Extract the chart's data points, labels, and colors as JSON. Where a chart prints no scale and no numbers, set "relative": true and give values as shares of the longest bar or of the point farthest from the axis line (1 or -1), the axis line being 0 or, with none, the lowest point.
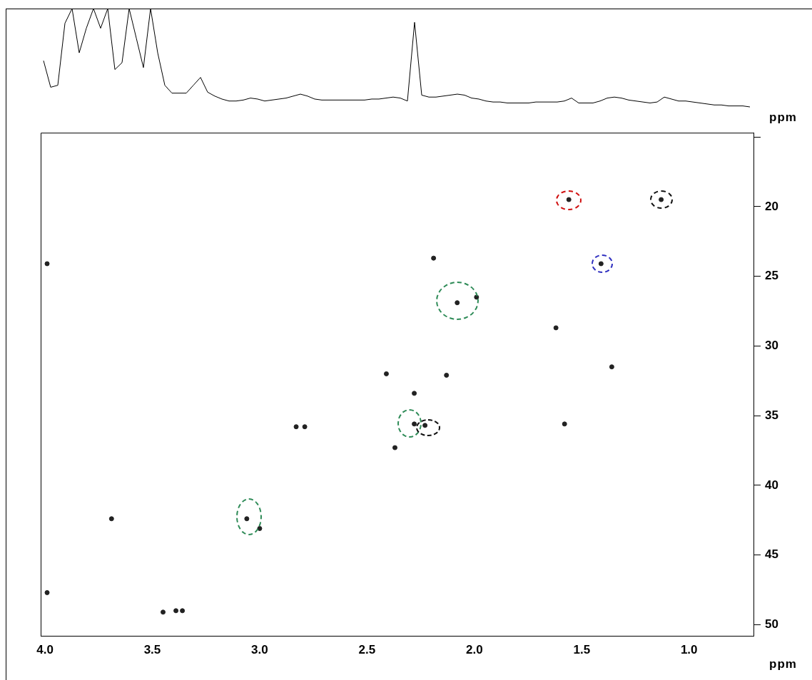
{
  "chart_data": [
    {
      "type": "line",
      "relative": true,
      "tick_labels": false,
      "marker": "none",
      "line_style": "solid",
      "categories": [
        null,
        null,
        null,
        null,
        null,
        null,
        null,
        null,
        null,
        null,
        null,
        null,
        null,
        null,
        null,
        null,
        null,
        null,
        null,
        null,
        null,
        null,
        null,
        null,
        null,
        null,
        null,
        null,
        null,
        null,
        null,
        null,
        null,
        null,
        null,
        null,
        null,
        null,
        null,
        null,
        null,
        null,
        null,
        null,
        null,
        null,
        null,
        null,
        null,
        null,
        null,
        null,
        null,
        null,
        null,
        null,
        null,
        null,
        null,
        null,
        null,
        null,
        null,
        null,
        null,
        null,
        null,
        null,
        null,
        null,
        null,
        null,
        null,
        null,
        null,
        null,
        null,
        null,
        null,
        null,
        null,
        null,
        null,
        null,
        null,
        null,
        null,
        null,
        null,
        null,
        null,
        null,
        null,
        null,
        null,
        null,
        null,
        null,
        null,
        null
      ],
      "series": [
        {
          "color": "#000000",
          "values": [
            0.47,
            0.2,
            0.22,
            0.85,
            1,
            0.55,
            0.8,
            1,
            0.8,
            1,
            0.38,
            0.45,
            1,
            0.7,
            0.4,
            1,
            0.55,
            0.22,
            0.14,
            0.14,
            0.14,
            0.22,
            0.3,
            0.15,
            0.11,
            0.08,
            0.06,
            0.06,
            0.07,
            0.09,
            0.08,
            0.06,
            0.07,
            0.08,
            0.09,
            0.11,
            0.13,
            0.11,
            0.08,
            0.07,
            0.07,
            0.07,
            0.07,
            0.07,
            0.07,
            0.07,
            0.08,
            0.08,
            0.09,
            0.1,
            0.09,
            0.06,
            0.86,
            0.12,
            0.1,
            0.1,
            0.11,
            0.12,
            0.13,
            0.12,
            0.09,
            0.08,
            0.06,
            0.05,
            0.05,
            0.04,
            0.04,
            0.04,
            0.04,
            0.05,
            0.05,
            0.05,
            0.05,
            0.06,
            0.09,
            0.04,
            0.04,
            0.04,
            0.06,
            0.09,
            0.1,
            0.09,
            0.07,
            0.06,
            0.05,
            0.04,
            0.05,
            0.1,
            0.08,
            0.06,
            0.06,
            0.05,
            0.04,
            0.03,
            0.02,
            0.02,
            0.01,
            0.01,
            0.01,
            0
          ]
        }
      ]
    },
    {
      "type": "scatter",
      "xlabel": "ppm",
      "ylabel": "ppm",
      "marker": "circle",
      "grid": false,
      "xlim": [
        4.02,
        0.7
      ],
      "ylim": [
        50.8,
        14.7
      ],
      "xticks": [
        {
          "value": 4,
          "label": "4.0"
        },
        {
          "value": 3.5,
          "label": "3.5"
        },
        {
          "value": 3,
          "label": "3.0"
        },
        {
          "value": 2.5,
          "label": "2.5"
        },
        {
          "value": 2,
          "label": "2.0"
        },
        {
          "value": 1.5,
          "label": "1.5"
        },
        {
          "value": 1,
          "label": "1.0"
        }
      ],
      "yticks": [
        {
          "value": 15,
          "label": null
        },
        20,
        25,
        30,
        35,
        40,
        45,
        50
      ],
      "series": [
        {
          "color": "#222222",
          "x": [
            1.56,
            1.13,
            2.19,
            1.41,
            2.08,
            1.99,
            1.62,
            1.36,
            2.41,
            2.13,
            2.28,
            2.28,
            2.23,
            2.83,
            2.79,
            1.58,
            2.37,
            3.06,
            3.0,
            3.69,
            3.99,
            3.99,
            3.45,
            3.39,
            3.36
          ],
          "values": [
            19.5,
            19.5,
            23.7,
            24.1,
            26.9,
            26.5,
            28.7,
            31.5,
            32.0,
            32.1,
            33.4,
            35.6,
            35.7,
            35.8,
            35.8,
            35.6,
            37.3,
            42.4,
            43.1,
            42.4,
            24.1,
            47.7,
            49.1,
            49.0,
            49.0
          ]
        }
      ]
    }
  ]
}
